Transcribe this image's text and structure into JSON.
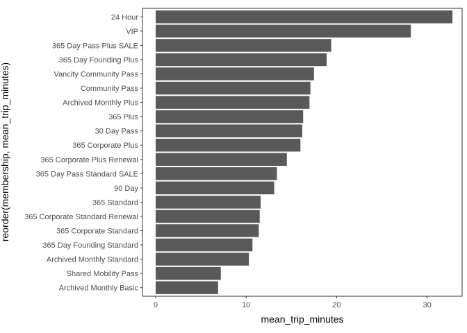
{
  "chart_data": {
    "type": "bar",
    "orientation": "horizontal",
    "xlabel": "mean_trip_minutes",
    "ylabel": "reorder(membership, mean_trip_minutes)",
    "xlim": [
      0,
      33.5
    ],
    "x_ticks": [
      0,
      10,
      20,
      30
    ],
    "grid": false,
    "bar_color": "#595959",
    "categories": [
      "24 Hour",
      "VIP",
      "365 Day Pass Plus SALE",
      "365 Day Founding Plus",
      "Vancity Community Pass",
      "Community Pass",
      "Archived Monthly Plus",
      "365 Plus",
      "30 Day Pass",
      "365 Corporate Plus",
      "365 Corporate Plus Renewal",
      "365 Day Pass Standard SALE",
      "90 Day",
      "365 Standard",
      "365 Corporate Standard Renewal",
      "365 Corporate Standard",
      "365 Day Founding Standard",
      "Archived Monthly Standard",
      "Shared Mobility Pass",
      "Archived Monthly Basic"
    ],
    "values": [
      32.8,
      28.2,
      19.4,
      18.9,
      17.5,
      17.1,
      17.0,
      16.3,
      16.2,
      16.0,
      14.5,
      13.4,
      13.1,
      11.6,
      11.5,
      11.4,
      10.7,
      10.3,
      7.2,
      6.9
    ]
  }
}
